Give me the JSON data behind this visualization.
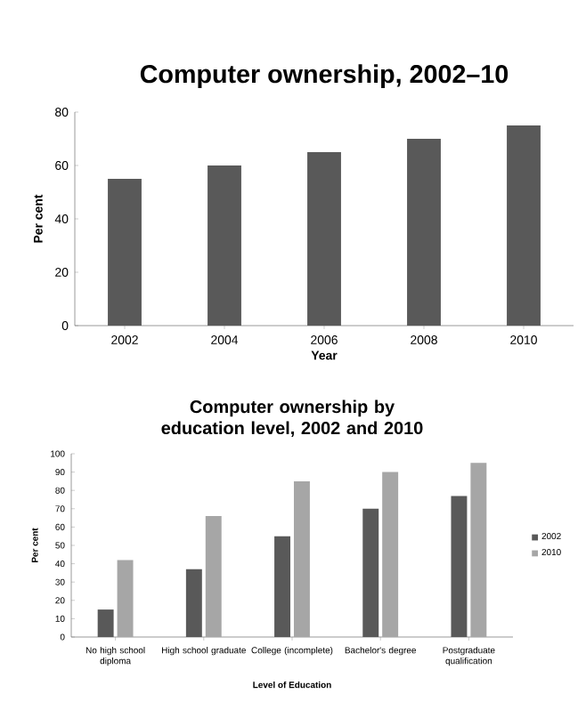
{
  "chart_data": [
    {
      "type": "bar",
      "title": "Computer ownership, 2002–10",
      "xlabel": "Year",
      "ylabel": "Per cent",
      "categories": [
        "2002",
        "2004",
        "2006",
        "2008",
        "2010"
      ],
      "values": [
        55,
        60,
        65,
        70,
        75
      ],
      "color": "#595959",
      "ylim": [
        0,
        80
      ],
      "yticks": [
        0,
        20,
        40,
        60,
        80
      ],
      "grid": false,
      "legend": false
    },
    {
      "type": "bar",
      "title": "Computer ownership by education level, 2002 and 2010",
      "xlabel": "Level of Education",
      "ylabel": "Per cent",
      "categories": [
        "No high school diploma",
        "High school graduate",
        "College (incomplete)",
        "Bachelor's degree",
        "Postgraduate qualification"
      ],
      "series": [
        {
          "name": "2002",
          "color": "#595959",
          "values": [
            15,
            37,
            55,
            70,
            77
          ]
        },
        {
          "name": "2010",
          "color": "#a6a6a6",
          "values": [
            42,
            66,
            85,
            90,
            95
          ]
        }
      ],
      "ylim": [
        0,
        100
      ],
      "yticks": [
        0,
        10,
        20,
        30,
        40,
        50,
        60,
        70,
        80,
        90,
        100
      ],
      "grid": false,
      "legend": "right"
    }
  ]
}
